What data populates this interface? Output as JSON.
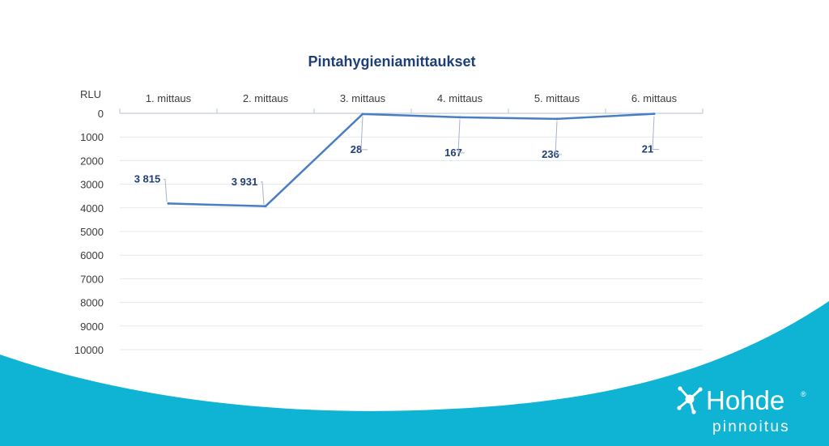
{
  "chart_data": {
    "type": "line",
    "title": "Pintahygieniamittaukset",
    "ylabel": "RLU",
    "categories": [
      "1. mittaus",
      "2. mittaus",
      "3. mittaus",
      "4. mittaus",
      "5. mittaus",
      "6. mittaus"
    ],
    "series": [
      {
        "values": [
          3815,
          3931,
          28,
          167,
          236,
          21
        ],
        "labels": [
          "3 815",
          "3 931",
          "28",
          "167",
          "236",
          "21"
        ],
        "color": "#4a7ec3"
      }
    ],
    "ylim": [
      0,
      10000
    ],
    "y_reversed": true,
    "y_ticks": [
      0,
      1000,
      2000,
      3000,
      4000,
      5000,
      6000,
      7000,
      8000,
      9000,
      10000
    ],
    "x_axis_position": "top",
    "grid": true
  },
  "brand": {
    "name": "Hohde",
    "registered": "®",
    "tagline": "pinnoitus",
    "wave_color": "#0fb4d4"
  }
}
